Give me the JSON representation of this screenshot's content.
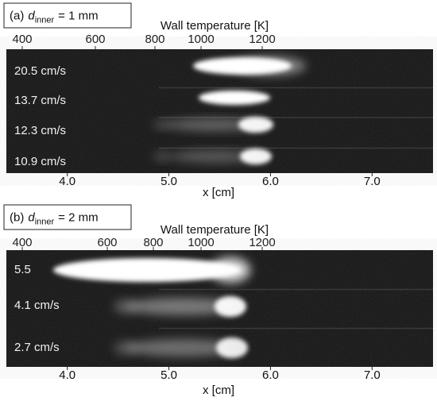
{
  "panels": [
    {
      "label": {
        "prefix": "(a)",
        "symbol": "d",
        "subscript": "inner",
        "rest": "= 1 mm"
      },
      "top_axis": {
        "title": "Wall temperature [K]",
        "ticks": [
          400,
          600,
          800,
          1000,
          1200
        ]
      },
      "bottom_axis": {
        "label": "x [cm]",
        "xlim": [
          3.4,
          7.6
        ],
        "ticks": [
          {
            "value": 4,
            "label": "4.0"
          },
          {
            "value": 5,
            "label": "5.0"
          },
          {
            "value": 6,
            "label": "6.0"
          },
          {
            "value": 7,
            "label": "7.0"
          }
        ]
      },
      "rows": [
        "20.5 cm/s",
        "13.7 cm/s",
        "12.3 cm/s",
        "10.9 cm/s"
      ]
    },
    {
      "label": {
        "prefix": "(b)",
        "symbol": "d",
        "subscript": "inner",
        "rest": "= 2 mm"
      },
      "top_axis": {
        "title": "Wall temperature [K]",
        "ticks": [
          400,
          600,
          800,
          1000,
          1200
        ]
      },
      "bottom_axis": {
        "label": "x [cm]",
        "xlim": [
          3.4,
          7.6
        ],
        "ticks": [
          {
            "value": 4,
            "label": "4.0"
          },
          {
            "value": 5,
            "label": "5.0"
          },
          {
            "value": 6,
            "label": "6.0"
          },
          {
            "value": 7,
            "label": "7.0"
          }
        ]
      },
      "rows": [
        "5.5",
        "4.1 cm/s",
        "2.7 cm/s"
      ]
    }
  ]
}
